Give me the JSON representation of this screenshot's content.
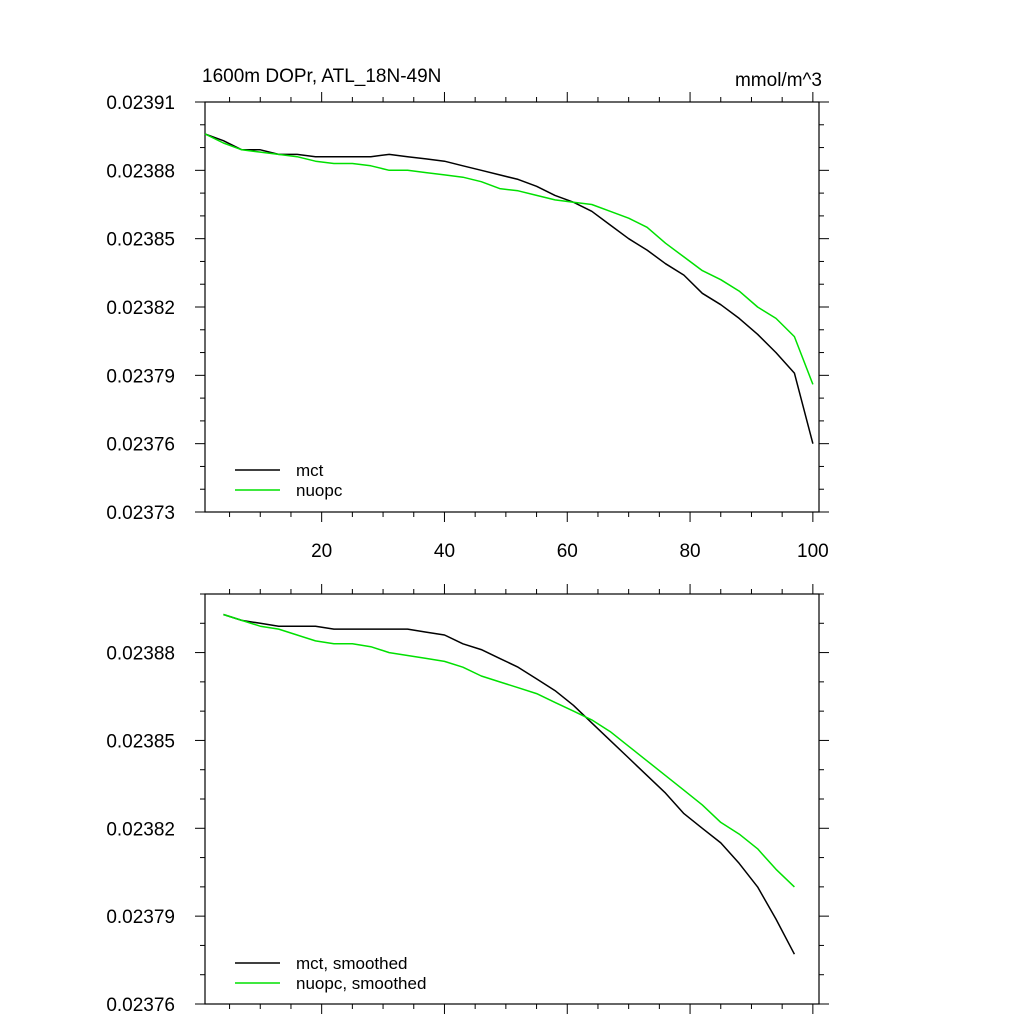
{
  "chart_data": [
    {
      "type": "line",
      "title": "1600m DOPr, ATL_18N-49N",
      "units": "mmol/m^3",
      "xlim": [
        1,
        101
      ],
      "ylim": [
        0.02373,
        0.02391
      ],
      "xticks": [
        20,
        40,
        60,
        80,
        100
      ],
      "xtick_labels": [
        "20",
        "40",
        "60",
        "80",
        "100"
      ],
      "yticks": [
        0.02373,
        0.02376,
        0.02379,
        0.02382,
        0.02385,
        0.02388,
        0.02391
      ],
      "ytick_labels": [
        "0.02373",
        "0.02376",
        "0.02379",
        "0.02382",
        "0.02385",
        "0.02388",
        "0.02391"
      ],
      "legend": {
        "position": "bottom-left"
      },
      "series": [
        {
          "name": "mct",
          "color": "#000000",
          "x": [
            1,
            4,
            7,
            10,
            13,
            16,
            19,
            22,
            25,
            28,
            31,
            34,
            37,
            40,
            43,
            46,
            49,
            52,
            55,
            58,
            61,
            64,
            67,
            70,
            73,
            76,
            79,
            82,
            85,
            88,
            91,
            94,
            97,
            100
          ],
          "y": [
            0.023896,
            0.023893,
            0.023889,
            0.023889,
            0.023887,
            0.023887,
            0.023886,
            0.023886,
            0.023886,
            0.023886,
            0.023887,
            0.023886,
            0.023885,
            0.023884,
            0.023882,
            0.02388,
            0.023878,
            0.023876,
            0.023873,
            0.023869,
            0.023866,
            0.023862,
            0.023856,
            0.02385,
            0.023845,
            0.023839,
            0.023834,
            0.023826,
            0.023821,
            0.023815,
            0.023808,
            0.0238,
            0.023791,
            0.02376
          ]
        },
        {
          "name": "nuopc",
          "color": "#00e000",
          "x": [
            1,
            4,
            7,
            10,
            13,
            16,
            19,
            22,
            25,
            28,
            31,
            34,
            37,
            40,
            43,
            46,
            49,
            52,
            55,
            58,
            61,
            64,
            67,
            70,
            73,
            76,
            79,
            82,
            85,
            88,
            91,
            94,
            97,
            100
          ],
          "y": [
            0.023896,
            0.023892,
            0.023889,
            0.023888,
            0.023887,
            0.023886,
            0.023884,
            0.023883,
            0.023883,
            0.023882,
            0.02388,
            0.02388,
            0.023879,
            0.023878,
            0.023877,
            0.023875,
            0.023872,
            0.023871,
            0.023869,
            0.023867,
            0.023866,
            0.023865,
            0.023862,
            0.023859,
            0.023855,
            0.023848,
            0.023842,
            0.023836,
            0.023832,
            0.023827,
            0.02382,
            0.023815,
            0.023807,
            0.023786
          ]
        }
      ]
    },
    {
      "type": "line",
      "title": "",
      "xlim": [
        1,
        101
      ],
      "ylim": [
        0.02376,
        0.0239
      ],
      "xticks": [
        20,
        40,
        60,
        80,
        100
      ],
      "yticks": [
        0.02376,
        0.02379,
        0.02382,
        0.02385,
        0.02388
      ],
      "ytick_labels": [
        "0.02376",
        "0.02379",
        "0.02382",
        "0.02385",
        "0.02388"
      ],
      "legend": {
        "position": "bottom-left"
      },
      "series": [
        {
          "name": "mct, smoothed",
          "color": "#000000",
          "x": [
            4,
            7,
            10,
            13,
            16,
            19,
            22,
            25,
            28,
            31,
            34,
            37,
            40,
            43,
            46,
            49,
            52,
            55,
            58,
            61,
            64,
            67,
            70,
            73,
            76,
            79,
            82,
            85,
            88,
            91,
            94,
            97
          ],
          "y": [
            0.023893,
            0.023891,
            0.02389,
            0.023889,
            0.023889,
            0.023889,
            0.023888,
            0.023888,
            0.023888,
            0.023888,
            0.023888,
            0.023887,
            0.023886,
            0.023883,
            0.023881,
            0.023878,
            0.023875,
            0.023871,
            0.023867,
            0.023862,
            0.023856,
            0.02385,
            0.023844,
            0.023838,
            0.023832,
            0.023825,
            0.02382,
            0.023815,
            0.023808,
            0.0238,
            0.023789,
            0.023777
          ]
        },
        {
          "name": "nuopc, smoothed",
          "color": "#00e000",
          "x": [
            4,
            7,
            10,
            13,
            16,
            19,
            22,
            25,
            28,
            31,
            34,
            37,
            40,
            43,
            46,
            49,
            52,
            55,
            58,
            61,
            64,
            67,
            70,
            73,
            76,
            79,
            82,
            85,
            88,
            91,
            94,
            97
          ],
          "y": [
            0.023893,
            0.023891,
            0.023889,
            0.023888,
            0.023886,
            0.023884,
            0.023883,
            0.023883,
            0.023882,
            0.02388,
            0.023879,
            0.023878,
            0.023877,
            0.023875,
            0.023872,
            0.02387,
            0.023868,
            0.023866,
            0.023863,
            0.02386,
            0.023857,
            0.023853,
            0.023848,
            0.023843,
            0.023838,
            0.023833,
            0.023828,
            0.023822,
            0.023818,
            0.023813,
            0.023806,
            0.0238
          ]
        }
      ]
    }
  ]
}
